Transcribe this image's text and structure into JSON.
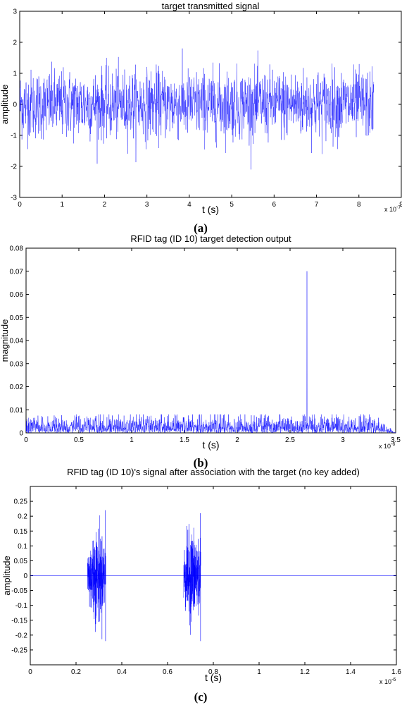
{
  "figure": {
    "captions": [
      "(a)",
      "(b)",
      "(c)"
    ]
  },
  "chart_data": [
    {
      "type": "line",
      "title": "target transmitted signal",
      "xlabel": "t (s)",
      "ylabel": "amplitude",
      "x_multiplier": "x 10",
      "x_exponent": "-7",
      "xlim": [
        0,
        9
      ],
      "ylim": [
        -3,
        3
      ],
      "xticks": [
        0,
        1,
        2,
        3,
        4,
        5,
        6,
        7,
        8,
        9
      ],
      "yticks": [
        -3,
        -2,
        -1,
        0,
        1,
        2,
        3
      ],
      "xtick_labels": [
        "0",
        "1",
        "2",
        "3",
        "4",
        "5",
        "6",
        "7",
        "8",
        "9"
      ],
      "ytick_labels": [
        "-3",
        "-2",
        "-1",
        "0",
        "1",
        "2",
        "3"
      ],
      "grid": false,
      "color": "#0000ff",
      "series": [
        {
          "description": "dense random noise-like signal",
          "x_range": [
            0,
            8.35
          ],
          "mean": 0,
          "peak_min": -2.1,
          "peak_max": 1.9
        }
      ]
    },
    {
      "type": "line",
      "title": "RFID tag (ID 10) target detection output",
      "xlabel": "t (s)",
      "ylabel": "magnitude",
      "x_multiplier": "x 10",
      "x_exponent": "-6",
      "xlim": [
        0,
        3.5
      ],
      "ylim": [
        0,
        0.08
      ],
      "xticks": [
        0,
        0.5,
        1,
        1.5,
        2,
        2.5,
        3,
        3.5
      ],
      "yticks": [
        0,
        0.01,
        0.02,
        0.03,
        0.04,
        0.05,
        0.06,
        0.07,
        0.08
      ],
      "xtick_labels": [
        "0",
        "0.5",
        "1",
        "1.5",
        "2",
        "2.5",
        "3",
        "3.5"
      ],
      "ytick_labels": [
        "0",
        "0.01",
        "0.02",
        "0.03",
        "0.04",
        "0.05",
        "0.06",
        "0.07",
        "0.08"
      ],
      "grid": false,
      "color": "#0000ff",
      "series": [
        {
          "description": "noise floor with single correlation peak",
          "x_range": [
            0,
            3.5
          ],
          "noise_level_max": 0.008,
          "peak": {
            "x": 2.66,
            "y": 0.07
          }
        }
      ]
    },
    {
      "type": "line",
      "title": "RFID tag (ID 10)'s signal after association with the target (no key added)",
      "xlabel": "t (s)",
      "ylabel": "amplitude",
      "x_multiplier": "x 10",
      "x_exponent": "-6",
      "xlim": [
        0,
        1.6
      ],
      "ylim": [
        -0.3,
        0.3
      ],
      "xticks": [
        0,
        0.2,
        0.4,
        0.6,
        0.8,
        1,
        1.2,
        1.4,
        1.6
      ],
      "yticks": [
        -0.25,
        -0.2,
        -0.15,
        -0.1,
        -0.05,
        0,
        0.05,
        0.1,
        0.15,
        0.2,
        0.25
      ],
      "xtick_labels": [
        "0",
        "0.2",
        "0.4",
        "0.6",
        "0.8",
        "1",
        "1.2",
        "1.4",
        "1.6"
      ],
      "ytick_labels": [
        "-0.25",
        "-0.2",
        "-0.15",
        "-0.1",
        "-0.05",
        "0",
        "0.05",
        "0.1",
        "0.15",
        "0.2",
        "0.25"
      ],
      "grid": false,
      "color": "#0000ff",
      "series": [
        {
          "description": "two bursts on a zero baseline",
          "baseline": 0,
          "bursts": [
            {
              "x_range": [
                0.25,
                0.33
              ],
              "peak_max": 0.22,
              "peak_min": -0.22
            },
            {
              "x_range": [
                0.67,
                0.745
              ],
              "peak_max": 0.21,
              "peak_min": -0.22
            }
          ]
        }
      ]
    }
  ]
}
